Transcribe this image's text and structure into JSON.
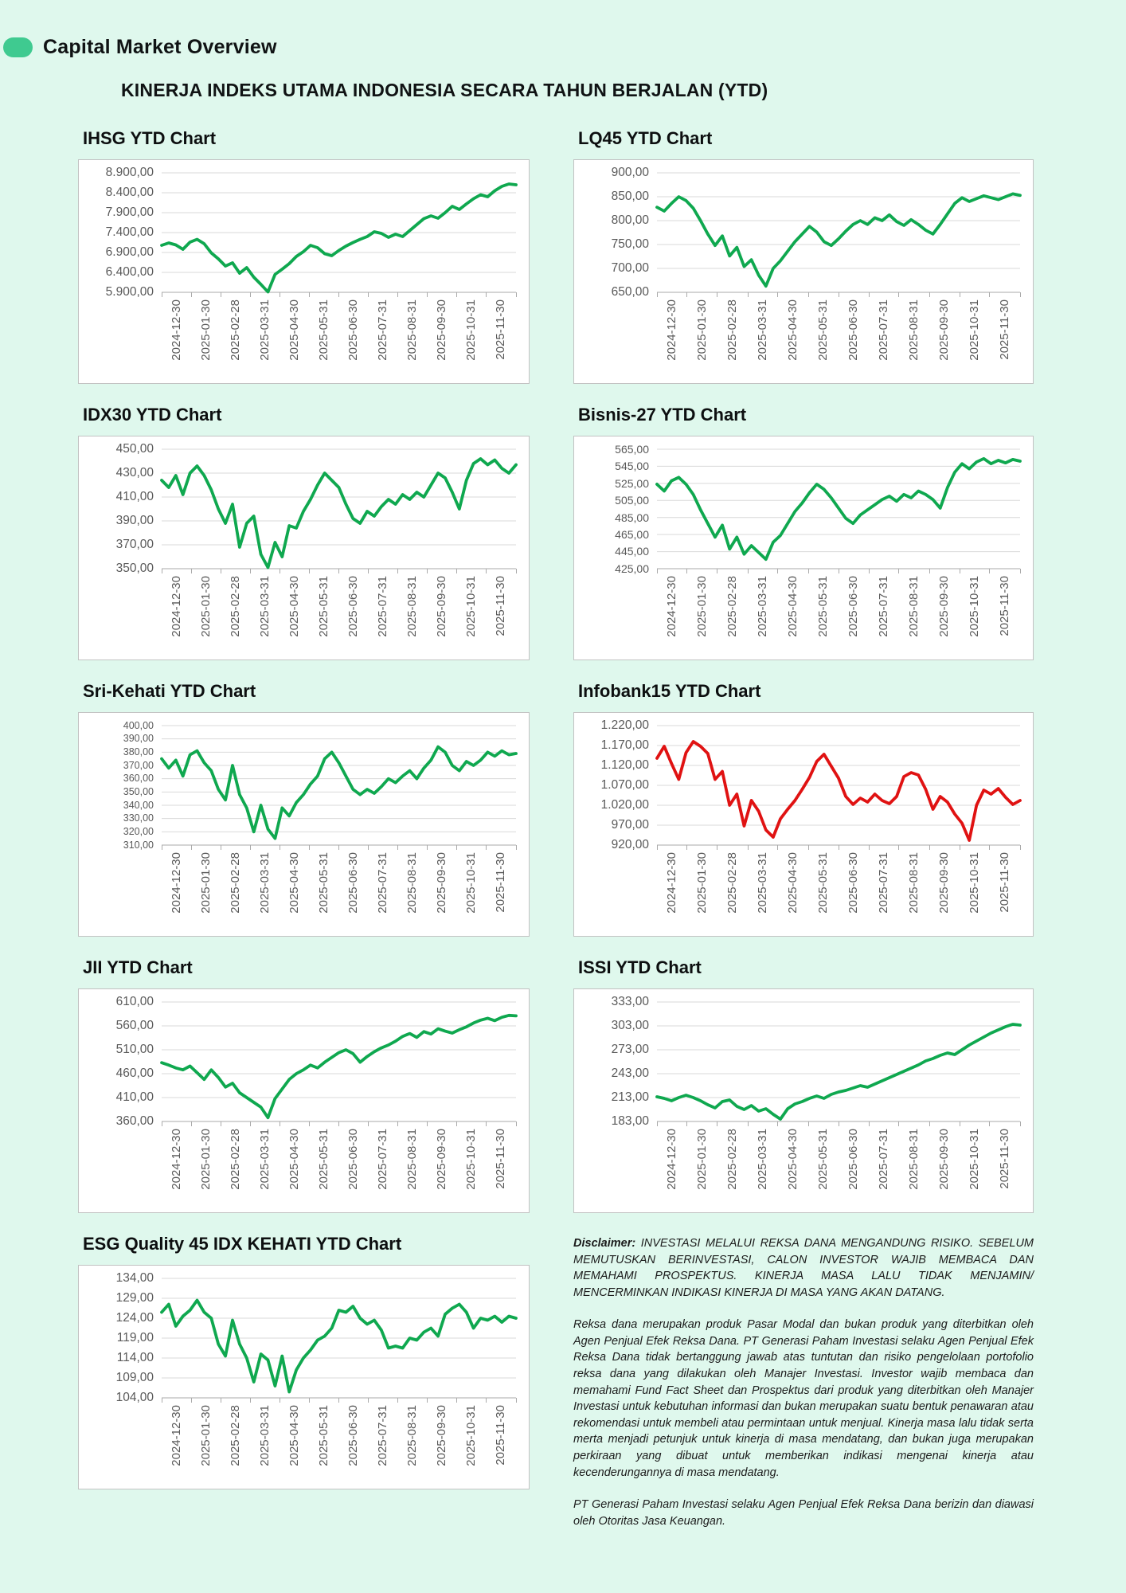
{
  "page": {
    "background_color": "#dff8ed",
    "accent_color": "#3fca90",
    "line_green": "#0fa84f",
    "line_red": "#e01212"
  },
  "header": {
    "brand": "Capital Market Overview",
    "title": "KINERJA INDEKS UTAMA INDONESIA SECARA TAHUN BERJALAN (YTD)"
  },
  "chart_data": [
    {
      "type": "line",
      "title": "IHSG YTD Chart",
      "color": "#0fa84f",
      "ylim": [
        5900,
        8900
      ],
      "ystep": 500,
      "grid": true,
      "legend": "none",
      "categories": [
        "2024-12-30",
        "2025-01-30",
        "2025-02-28",
        "2025-03-31",
        "2025-04-30",
        "2025-05-31",
        "2025-06-30",
        "2025-07-31",
        "2025-08-31",
        "2025-09-30",
        "2025-10-31",
        "2025-11-30"
      ],
      "values": [
        7080,
        7140,
        7090,
        6980,
        7160,
        7230,
        7120,
        6890,
        6740,
        6560,
        6640,
        6380,
        6520,
        6280,
        6100,
        5910,
        6350,
        6480,
        6620,
        6800,
        6920,
        7080,
        7020,
        6870,
        6820,
        6950,
        7060,
        7150,
        7230,
        7300,
        7420,
        7380,
        7280,
        7360,
        7300,
        7450,
        7600,
        7750,
        7820,
        7760,
        7900,
        8060,
        7980,
        8120,
        8250,
        8350,
        8300,
        8450,
        8560,
        8620,
        8600
      ]
    },
    {
      "type": "line",
      "title": "LQ45 YTD Chart",
      "color": "#0fa84f",
      "ylim": [
        650,
        900
      ],
      "ystep": 50,
      "grid": true,
      "legend": "none",
      "categories": [
        "2024-12-30",
        "2025-01-30",
        "2025-02-28",
        "2025-03-31",
        "2025-04-30",
        "2025-05-31",
        "2025-06-30",
        "2025-07-31",
        "2025-08-31",
        "2025-09-30",
        "2025-10-31",
        "2025-11-30"
      ],
      "values": [
        828,
        820,
        836,
        850,
        842,
        826,
        800,
        772,
        748,
        768,
        726,
        744,
        704,
        718,
        686,
        663,
        700,
        716,
        736,
        756,
        772,
        788,
        776,
        756,
        748,
        762,
        778,
        792,
        800,
        792,
        806,
        800,
        812,
        798,
        790,
        802,
        792,
        780,
        772,
        792,
        814,
        836,
        848,
        840,
        846,
        852,
        848,
        844,
        850,
        856,
        853
      ]
    },
    {
      "type": "line",
      "title": "IDX30 YTD Chart",
      "color": "#0fa84f",
      "ylim": [
        350,
        450
      ],
      "ystep": 20,
      "grid": true,
      "legend": "none",
      "categories": [
        "2024-12-30",
        "2025-01-30",
        "2025-02-28",
        "2025-03-31",
        "2025-04-30",
        "2025-05-31",
        "2025-06-30",
        "2025-07-31",
        "2025-08-31",
        "2025-09-30",
        "2025-10-31",
        "2025-11-30"
      ],
      "values": [
        424,
        418,
        428,
        412,
        430,
        436,
        428,
        416,
        400,
        388,
        404,
        368,
        388,
        394,
        362,
        351,
        372,
        360,
        386,
        384,
        398,
        408,
        420,
        430,
        424,
        418,
        404,
        392,
        388,
        398,
        394,
        402,
        408,
        404,
        412,
        408,
        414,
        410,
        420,
        430,
        426,
        414,
        400,
        424,
        438,
        442,
        437,
        441,
        434,
        430,
        437
      ]
    },
    {
      "type": "line",
      "title": "Bisnis-27 YTD Chart",
      "color": "#0fa84f",
      "ylim": [
        425,
        565
      ],
      "ystep": 20,
      "grid": true,
      "legend": "none",
      "categories": [
        "2024-12-30",
        "2025-01-30",
        "2025-02-28",
        "2025-03-31",
        "2025-04-30",
        "2025-05-31",
        "2025-06-30",
        "2025-07-31",
        "2025-08-31",
        "2025-09-30",
        "2025-10-31",
        "2025-11-30"
      ],
      "values": [
        524,
        516,
        528,
        532,
        524,
        512,
        494,
        478,
        462,
        476,
        448,
        462,
        442,
        452,
        444,
        436,
        456,
        464,
        478,
        492,
        502,
        514,
        524,
        518,
        508,
        496,
        484,
        478,
        488,
        494,
        500,
        506,
        510,
        504,
        512,
        508,
        516,
        512,
        506,
        496,
        520,
        538,
        548,
        542,
        550,
        554,
        548,
        552,
        549,
        553,
        551
      ]
    },
    {
      "type": "line",
      "title": "Sri-Kehati YTD Chart",
      "color": "#0fa84f",
      "ylim": [
        310,
        400
      ],
      "ystep": 10,
      "grid": true,
      "legend": "none",
      "categories": [
        "2024-12-30",
        "2025-01-30",
        "2025-02-28",
        "2025-03-31",
        "2025-04-30",
        "2025-05-31",
        "2025-06-30",
        "2025-07-31",
        "2025-08-31",
        "2025-09-30",
        "2025-10-31",
        "2025-11-30"
      ],
      "values": [
        375,
        368,
        374,
        362,
        378,
        381,
        372,
        366,
        352,
        344,
        370,
        348,
        338,
        320,
        340,
        322,
        315,
        338,
        332,
        342,
        348,
        356,
        362,
        375,
        380,
        372,
        362,
        352,
        348,
        352,
        349,
        354,
        360,
        357,
        362,
        366,
        360,
        368,
        374,
        384,
        380,
        370,
        366,
        373,
        370,
        374,
        380,
        377,
        381,
        378,
        379
      ]
    },
    {
      "type": "line",
      "title": "Infobank15 YTD Chart",
      "color": "#e01212",
      "ylim": [
        920,
        1220
      ],
      "ystep": 50,
      "grid": true,
      "legend": "none",
      "categories": [
        "2024-12-30",
        "2025-01-30",
        "2025-02-28",
        "2025-03-31",
        "2025-04-30",
        "2025-05-31",
        "2025-06-30",
        "2025-07-31",
        "2025-08-31",
        "2025-09-30",
        "2025-10-31",
        "2025-11-30"
      ],
      "values": [
        1138,
        1168,
        1125,
        1085,
        1152,
        1180,
        1168,
        1150,
        1085,
        1105,
        1020,
        1048,
        968,
        1032,
        1005,
        958,
        940,
        986,
        1010,
        1032,
        1060,
        1090,
        1130,
        1148,
        1118,
        1088,
        1042,
        1022,
        1038,
        1028,
        1048,
        1032,
        1024,
        1042,
        1092,
        1102,
        1096,
        1060,
        1010,
        1042,
        1028,
        998,
        975,
        932,
        1020,
        1058,
        1048,
        1062,
        1040,
        1022,
        1032
      ]
    },
    {
      "type": "line",
      "title": "JII YTD Chart",
      "color": "#0fa84f",
      "ylim": [
        360,
        610
      ],
      "ystep": 50,
      "grid": true,
      "legend": "none",
      "categories": [
        "2024-12-30",
        "2025-01-30",
        "2025-02-28",
        "2025-03-31",
        "2025-04-30",
        "2025-05-31",
        "2025-06-30",
        "2025-07-31",
        "2025-08-31",
        "2025-09-30",
        "2025-10-31",
        "2025-11-30"
      ],
      "values": [
        483,
        478,
        472,
        468,
        476,
        462,
        448,
        468,
        452,
        432,
        440,
        420,
        410,
        400,
        390,
        368,
        408,
        428,
        448,
        460,
        468,
        478,
        472,
        484,
        494,
        504,
        510,
        502,
        484,
        496,
        506,
        514,
        520,
        528,
        538,
        544,
        536,
        548,
        543,
        554,
        549,
        545,
        552,
        558,
        566,
        572,
        576,
        571,
        578,
        582,
        581
      ]
    },
    {
      "type": "line",
      "title": "ISSI YTD Chart",
      "color": "#0fa84f",
      "ylim": [
        183,
        333
      ],
      "ystep": 30,
      "grid": true,
      "legend": "none",
      "categories": [
        "2024-12-30",
        "2025-01-30",
        "2025-02-28",
        "2025-03-31",
        "2025-04-30",
        "2025-05-31",
        "2025-06-30",
        "2025-07-31",
        "2025-08-31",
        "2025-09-30",
        "2025-10-31",
        "2025-11-30"
      ],
      "values": [
        214,
        212,
        209,
        213,
        216,
        213,
        209,
        204,
        200,
        208,
        210,
        202,
        198,
        203,
        196,
        199,
        192,
        186,
        199,
        205,
        208,
        212,
        215,
        212,
        217,
        220,
        222,
        225,
        228,
        226,
        230,
        234,
        238,
        242,
        246,
        250,
        254,
        259,
        262,
        266,
        269,
        267,
        273,
        279,
        284,
        289,
        294,
        298,
        302,
        305,
        304
      ]
    },
    {
      "type": "line",
      "title": "ESG Quality 45 IDX KEHATI YTD Chart",
      "color": "#0fa84f",
      "ylim": [
        104,
        134
      ],
      "ystep": 5,
      "grid": true,
      "legend": "none",
      "categories": [
        "2024-12-30",
        "2025-01-30",
        "2025-02-28",
        "2025-03-31",
        "2025-04-30",
        "2025-05-31",
        "2025-06-30",
        "2025-07-31",
        "2025-08-31",
        "2025-09-30",
        "2025-10-31",
        "2025-11-30"
      ],
      "values": [
        125.5,
        127.5,
        122,
        124.5,
        126,
        128.5,
        125.5,
        124,
        117.5,
        114.5,
        123.5,
        117.5,
        114,
        108,
        115,
        113.5,
        107,
        114.5,
        105.5,
        111,
        114,
        116,
        118.5,
        119.5,
        121.5,
        126,
        125.5,
        127,
        124,
        122.5,
        123.5,
        121,
        116.5,
        117,
        116.5,
        119,
        118.5,
        120.5,
        121.5,
        119.5,
        125,
        126.5,
        127.5,
        125.5,
        121.5,
        124,
        123.5,
        124.5,
        123,
        124.5,
        124
      ]
    }
  ],
  "disclaimer": {
    "label": "Disclaimer:",
    "p1": "INVESTASI MELALUI REKSA DANA MENGANDUNG RISIKO. SEBELUM MEMUTUSKAN BERINVESTASI, CALON INVESTOR WAJIB MEMBACA DAN MEMAHAMI PROSPEKTUS. KINERJA MASA LALU TIDAK MENJAMIN/ MENCERMINKAN INDIKASI KINERJA DI MASA YANG AKAN DATANG.",
    "p2": "Reksa dana merupakan produk Pasar Modal dan bukan produk yang diterbitkan oleh Agen Penjual Efek Reksa Dana. PT Generasi Paham Investasi selaku Agen Penjual Efek Reksa Dana tidak bertanggung jawab atas tuntutan dan risiko pengelolaan portofolio reksa dana yang dilakukan oleh Manajer Investasi. Investor wajib membaca dan memahami Fund Fact Sheet dan Prospektus dari produk yang diterbitkan oleh Manajer Investasi untuk kebutuhan informasi dan bukan merupakan suatu bentuk penawaran atau rekomendasi untuk membeli atau permintaan untuk menjual. Kinerja masa lalu tidak serta merta menjadi petunjuk untuk kinerja di masa mendatang, dan bukan juga merupakan perkiraan yang dibuat untuk memberikan indikasi mengenai kinerja atau kecenderungannya di masa mendatang.",
    "p3": "PT Generasi Paham Investasi selaku Agen Penjual Efek Reksa Dana berizin dan diawasi oleh Otoritas Jasa Keuangan."
  }
}
